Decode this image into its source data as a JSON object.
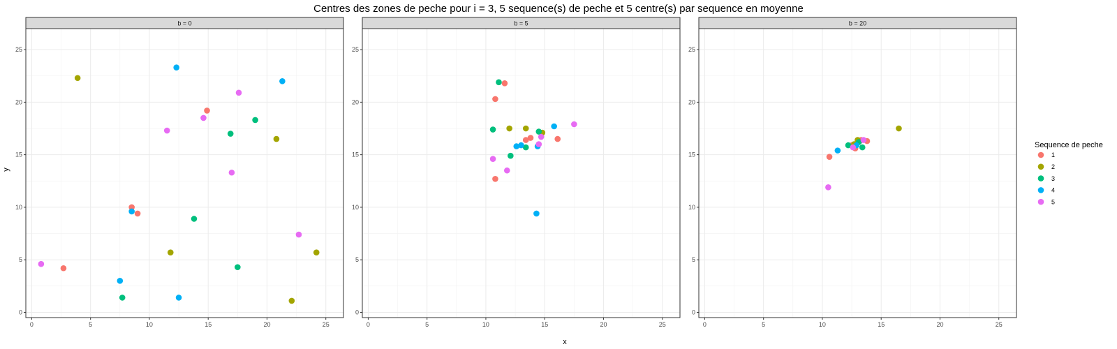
{
  "chart_data": {
    "type": "scatter",
    "title": "Centres des zones de peche pour i = 3, 5 sequence(s) de peche et 5 centre(s) par sequence en moyenne",
    "xlabel": "x",
    "ylabel": "y",
    "xlim": [
      -0.5,
      26.5
    ],
    "ylim": [
      -0.5,
      27.0
    ],
    "x_ticks": [
      0,
      5,
      10,
      15,
      20,
      25
    ],
    "y_ticks": [
      0,
      5,
      10,
      15,
      20,
      25
    ],
    "grid": true,
    "legend": {
      "title": "Sequence de peche",
      "position": "right",
      "entries": [
        {
          "label": "1",
          "color": "#F8766D"
        },
        {
          "label": "2",
          "color": "#A3A500"
        },
        {
          "label": "3",
          "color": "#00BF7D"
        },
        {
          "label": "4",
          "color": "#00B0F6"
        },
        {
          "label": "5",
          "color": "#E76BF3"
        }
      ]
    },
    "panels": [
      {
        "label": "b = 0",
        "points": [
          {
            "x": 8.5,
            "y": 10.0,
            "seq": "1"
          },
          {
            "x": 9.0,
            "y": 9.4,
            "seq": "1"
          },
          {
            "x": 14.9,
            "y": 19.2,
            "seq": "1"
          },
          {
            "x": 2.7,
            "y": 4.2,
            "seq": "1"
          },
          {
            "x": 3.9,
            "y": 22.3,
            "seq": "2"
          },
          {
            "x": 11.8,
            "y": 5.7,
            "seq": "2"
          },
          {
            "x": 20.8,
            "y": 16.5,
            "seq": "2"
          },
          {
            "x": 24.2,
            "y": 5.7,
            "seq": "2"
          },
          {
            "x": 22.1,
            "y": 1.1,
            "seq": "2"
          },
          {
            "x": 7.7,
            "y": 1.4,
            "seq": "3"
          },
          {
            "x": 13.8,
            "y": 8.9,
            "seq": "3"
          },
          {
            "x": 16.9,
            "y": 17.0,
            "seq": "3"
          },
          {
            "x": 19.0,
            "y": 18.3,
            "seq": "3"
          },
          {
            "x": 17.5,
            "y": 4.3,
            "seq": "3"
          },
          {
            "x": 12.3,
            "y": 23.3,
            "seq": "4"
          },
          {
            "x": 21.3,
            "y": 22.0,
            "seq": "4"
          },
          {
            "x": 8.5,
            "y": 9.6,
            "seq": "4"
          },
          {
            "x": 7.5,
            "y": 3.0,
            "seq": "4"
          },
          {
            "x": 12.5,
            "y": 1.4,
            "seq": "4"
          },
          {
            "x": 0.8,
            "y": 4.6,
            "seq": "5"
          },
          {
            "x": 11.5,
            "y": 17.3,
            "seq": "5"
          },
          {
            "x": 14.6,
            "y": 18.5,
            "seq": "5"
          },
          {
            "x": 17.6,
            "y": 20.9,
            "seq": "5"
          },
          {
            "x": 17.0,
            "y": 13.3,
            "seq": "5"
          },
          {
            "x": 22.7,
            "y": 7.4,
            "seq": "5"
          }
        ]
      },
      {
        "label": "b = 5",
        "points": [
          {
            "x": 11.6,
            "y": 21.8,
            "seq": "1"
          },
          {
            "x": 10.8,
            "y": 20.3,
            "seq": "1"
          },
          {
            "x": 13.4,
            "y": 16.4,
            "seq": "1"
          },
          {
            "x": 13.8,
            "y": 16.6,
            "seq": "1"
          },
          {
            "x": 16.1,
            "y": 16.5,
            "seq": "1"
          },
          {
            "x": 10.8,
            "y": 12.7,
            "seq": "1"
          },
          {
            "x": 12.0,
            "y": 17.5,
            "seq": "2"
          },
          {
            "x": 13.4,
            "y": 17.5,
            "seq": "2"
          },
          {
            "x": 14.8,
            "y": 17.1,
            "seq": "2"
          },
          {
            "x": 11.1,
            "y": 21.9,
            "seq": "3"
          },
          {
            "x": 10.6,
            "y": 17.4,
            "seq": "3"
          },
          {
            "x": 12.1,
            "y": 14.9,
            "seq": "3"
          },
          {
            "x": 13.4,
            "y": 15.7,
            "seq": "3"
          },
          {
            "x": 14.5,
            "y": 17.2,
            "seq": "3"
          },
          {
            "x": 12.6,
            "y": 15.8,
            "seq": "4"
          },
          {
            "x": 13.0,
            "y": 15.9,
            "seq": "4"
          },
          {
            "x": 15.8,
            "y": 17.7,
            "seq": "4"
          },
          {
            "x": 14.4,
            "y": 15.8,
            "seq": "4"
          },
          {
            "x": 14.3,
            "y": 9.4,
            "seq": "4"
          },
          {
            "x": 10.6,
            "y": 14.6,
            "seq": "5"
          },
          {
            "x": 11.8,
            "y": 13.5,
            "seq": "5"
          },
          {
            "x": 14.5,
            "y": 16.0,
            "seq": "5"
          },
          {
            "x": 14.7,
            "y": 16.7,
            "seq": "5"
          },
          {
            "x": 17.5,
            "y": 17.9,
            "seq": "5"
          }
        ]
      },
      {
        "label": "b = 20",
        "points": [
          {
            "x": 10.6,
            "y": 14.8,
            "seq": "1"
          },
          {
            "x": 12.5,
            "y": 15.9,
            "seq": "1"
          },
          {
            "x": 12.8,
            "y": 15.6,
            "seq": "1"
          },
          {
            "x": 13.3,
            "y": 16.4,
            "seq": "1"
          },
          {
            "x": 13.8,
            "y": 16.3,
            "seq": "1"
          },
          {
            "x": 16.5,
            "y": 17.5,
            "seq": "2"
          },
          {
            "x": 13.0,
            "y": 16.4,
            "seq": "2"
          },
          {
            "x": 12.7,
            "y": 16.0,
            "seq": "2"
          },
          {
            "x": 12.2,
            "y": 15.9,
            "seq": "3"
          },
          {
            "x": 13.4,
            "y": 15.7,
            "seq": "3"
          },
          {
            "x": 13.1,
            "y": 16.2,
            "seq": "3"
          },
          {
            "x": 11.3,
            "y": 15.4,
            "seq": "4"
          },
          {
            "x": 12.9,
            "y": 15.9,
            "seq": "4"
          },
          {
            "x": 10.5,
            "y": 11.9,
            "seq": "5"
          },
          {
            "x": 12.6,
            "y": 15.7,
            "seq": "5"
          },
          {
            "x": 13.5,
            "y": 16.4,
            "seq": "5"
          }
        ]
      }
    ]
  }
}
